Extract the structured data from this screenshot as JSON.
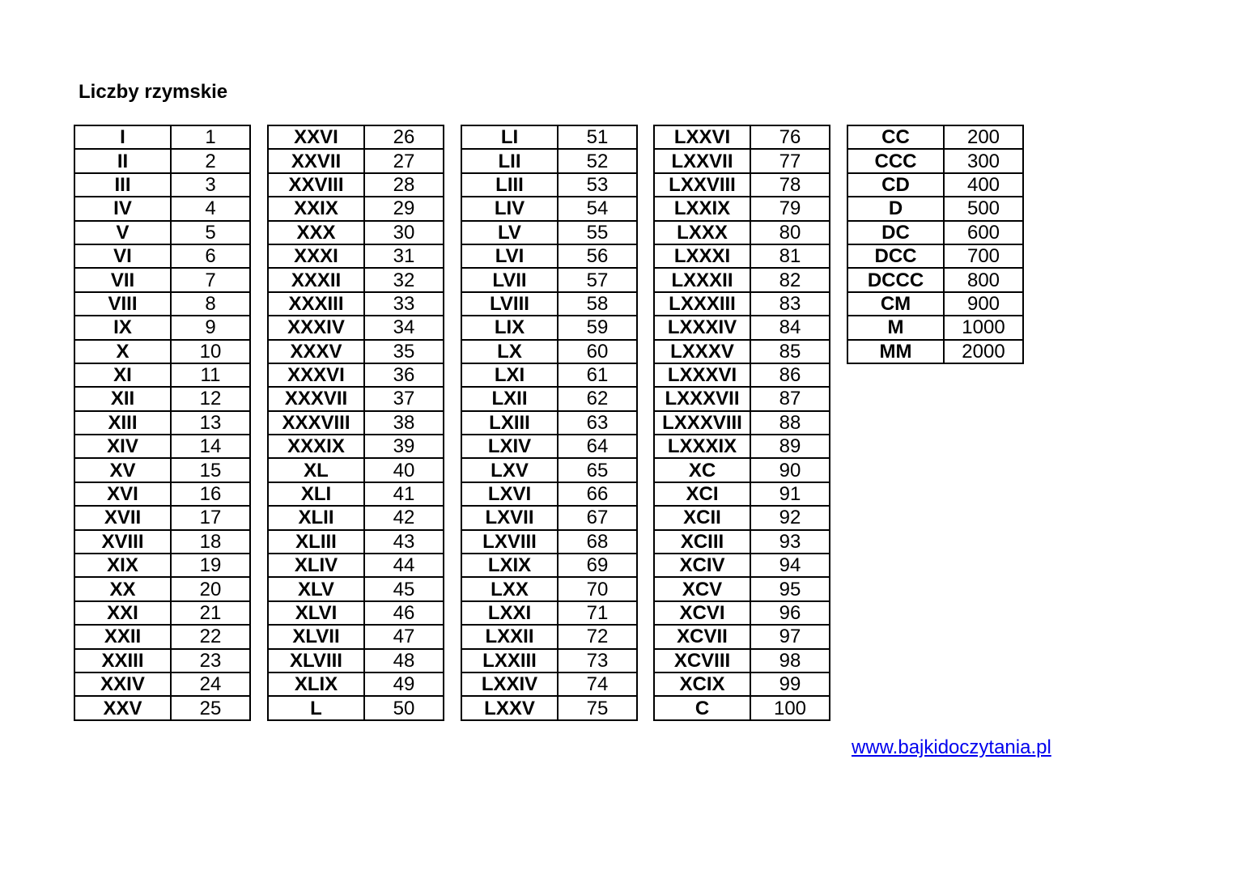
{
  "title": "Liczby rzymskie",
  "link": "www.bajkidoczytania.pl",
  "tables": [
    [
      [
        "I",
        "1"
      ],
      [
        "II",
        "2"
      ],
      [
        "III",
        "3"
      ],
      [
        "IV",
        "4"
      ],
      [
        "V",
        "5"
      ],
      [
        "VI",
        "6"
      ],
      [
        "VII",
        "7"
      ],
      [
        "VIII",
        "8"
      ],
      [
        "IX",
        "9"
      ],
      [
        "X",
        "10"
      ],
      [
        "XI",
        "11"
      ],
      [
        "XII",
        "12"
      ],
      [
        "XIII",
        "13"
      ],
      [
        "XIV",
        "14"
      ],
      [
        "XV",
        "15"
      ],
      [
        "XVI",
        "16"
      ],
      [
        "XVII",
        "17"
      ],
      [
        "XVIII",
        "18"
      ],
      [
        "XIX",
        "19"
      ],
      [
        "XX",
        "20"
      ],
      [
        "XXI",
        "21"
      ],
      [
        "XXII",
        "22"
      ],
      [
        "XXIII",
        "23"
      ],
      [
        "XXIV",
        "24"
      ],
      [
        "XXV",
        "25"
      ]
    ],
    [
      [
        "XXVI",
        "26"
      ],
      [
        "XXVII",
        "27"
      ],
      [
        "XXVIII",
        "28"
      ],
      [
        "XXIX",
        "29"
      ],
      [
        "XXX",
        "30"
      ],
      [
        "XXXI",
        "31"
      ],
      [
        "XXXII",
        "32"
      ],
      [
        "XXXIII",
        "33"
      ],
      [
        "XXXIV",
        "34"
      ],
      [
        "XXXV",
        "35"
      ],
      [
        "XXXVI",
        "36"
      ],
      [
        "XXXVII",
        "37"
      ],
      [
        "XXXVIII",
        "38"
      ],
      [
        "XXXIX",
        "39"
      ],
      [
        "XL",
        "40"
      ],
      [
        "XLI",
        "41"
      ],
      [
        "XLII",
        "42"
      ],
      [
        "XLIII",
        "43"
      ],
      [
        "XLIV",
        "44"
      ],
      [
        "XLV",
        "45"
      ],
      [
        "XLVI",
        "46"
      ],
      [
        "XLVII",
        "47"
      ],
      [
        "XLVIII",
        "48"
      ],
      [
        "XLIX",
        "49"
      ],
      [
        "L",
        "50"
      ]
    ],
    [
      [
        "LI",
        "51"
      ],
      [
        "LII",
        "52"
      ],
      [
        "LIII",
        "53"
      ],
      [
        "LIV",
        "54"
      ],
      [
        "LV",
        "55"
      ],
      [
        "LVI",
        "56"
      ],
      [
        "LVII",
        "57"
      ],
      [
        "LVIII",
        "58"
      ],
      [
        "LIX",
        "59"
      ],
      [
        "LX",
        "60"
      ],
      [
        "LXI",
        "61"
      ],
      [
        "LXII",
        "62"
      ],
      [
        "LXIII",
        "63"
      ],
      [
        "LXIV",
        "64"
      ],
      [
        "LXV",
        "65"
      ],
      [
        "LXVI",
        "66"
      ],
      [
        "LXVII",
        "67"
      ],
      [
        "LXVIII",
        "68"
      ],
      [
        "LXIX",
        "69"
      ],
      [
        "LXX",
        "70"
      ],
      [
        "LXXI",
        "71"
      ],
      [
        "LXXII",
        "72"
      ],
      [
        "LXXIII",
        "73"
      ],
      [
        "LXXIV",
        "74"
      ],
      [
        "LXXV",
        "75"
      ]
    ],
    [
      [
        "LXXVI",
        "76"
      ],
      [
        "LXXVII",
        "77"
      ],
      [
        "LXXVIII",
        "78"
      ],
      [
        "LXXIX",
        "79"
      ],
      [
        "LXXX",
        "80"
      ],
      [
        "LXXXI",
        "81"
      ],
      [
        "LXXXII",
        "82"
      ],
      [
        "LXXXIII",
        "83"
      ],
      [
        "LXXXIV",
        "84"
      ],
      [
        "LXXXV",
        "85"
      ],
      [
        "LXXXVI",
        "86"
      ],
      [
        "LXXXVII",
        "87"
      ],
      [
        "LXXXVIII",
        "88"
      ],
      [
        "LXXXIX",
        "89"
      ],
      [
        "XC",
        "90"
      ],
      [
        "XCI",
        "91"
      ],
      [
        "XCII",
        "92"
      ],
      [
        "XCIII",
        "93"
      ],
      [
        "XCIV",
        "94"
      ],
      [
        "XCV",
        "95"
      ],
      [
        "XCVI",
        "96"
      ],
      [
        "XCVII",
        "97"
      ],
      [
        "XCVIII",
        "98"
      ],
      [
        "XCIX",
        "99"
      ],
      [
        "C",
        "100"
      ]
    ],
    [
      [
        "CC",
        "200"
      ],
      [
        "CCC",
        "300"
      ],
      [
        "CD",
        "400"
      ],
      [
        "D",
        "500"
      ],
      [
        "DC",
        "600"
      ],
      [
        "DCC",
        "700"
      ],
      [
        "DCCC",
        "800"
      ],
      [
        "CM",
        "900"
      ],
      [
        "M",
        "1000"
      ],
      [
        "MM",
        "2000"
      ]
    ]
  ]
}
